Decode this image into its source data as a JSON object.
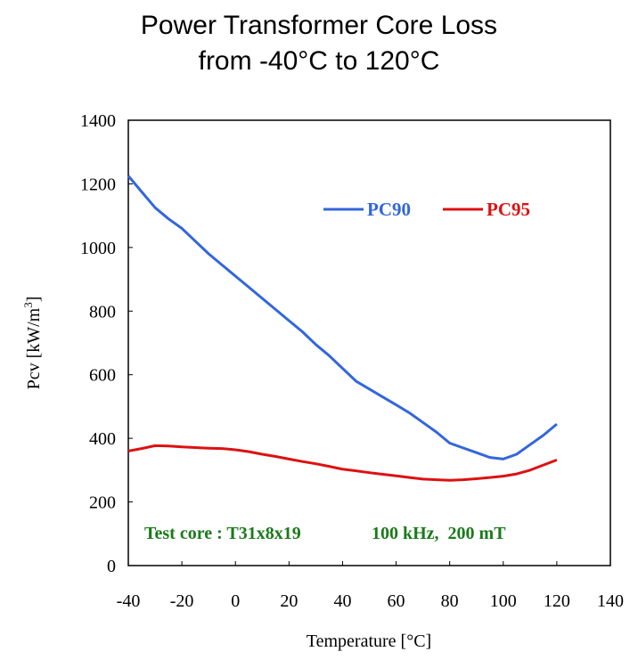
{
  "chart_data": {
    "type": "line",
    "title_line1": "Power Transformer Core Loss",
    "title_line2": "from -40°C to 120°C",
    "xlabel": "Temperature [°C]",
    "ylabel": "Pcv [kW/m",
    "ylabel_sup": "3",
    "ylabel_end": "]",
    "xlim": [
      -40,
      140
    ],
    "ylim": [
      0,
      1400
    ],
    "xticks": [
      -40,
      -20,
      0,
      20,
      40,
      60,
      80,
      100,
      120,
      140
    ],
    "yticks": [
      0,
      200,
      400,
      600,
      800,
      1000,
      1200,
      1400
    ],
    "legend_position": "top-right",
    "series": [
      {
        "name": "PC90",
        "color": "#3366dd",
        "x": [
          -40,
          -35,
          -30,
          -25,
          -20,
          -15,
          -10,
          -5,
          0,
          5,
          10,
          15,
          20,
          25,
          30,
          35,
          40,
          45,
          50,
          55,
          60,
          65,
          70,
          75,
          80,
          85,
          90,
          95,
          100,
          105,
          110,
          115,
          120
        ],
        "y": [
          1225,
          1175,
          1125,
          1090,
          1060,
          1020,
          980,
          945,
          910,
          875,
          840,
          805,
          770,
          735,
          695,
          660,
          620,
          580,
          555,
          530,
          505,
          480,
          450,
          420,
          385,
          370,
          355,
          340,
          335,
          350,
          380,
          410,
          445
        ]
      },
      {
        "name": "PC95",
        "color": "#dd1111",
        "x": [
          -40,
          -35,
          -30,
          -25,
          -20,
          -15,
          -10,
          -5,
          0,
          5,
          10,
          15,
          20,
          25,
          30,
          35,
          40,
          45,
          50,
          55,
          60,
          65,
          70,
          75,
          80,
          85,
          90,
          95,
          100,
          105,
          110,
          115,
          120
        ],
        "y": [
          360,
          368,
          377,
          376,
          373,
          371,
          369,
          368,
          364,
          358,
          350,
          343,
          335,
          327,
          320,
          312,
          303,
          298,
          292,
          287,
          282,
          277,
          272,
          270,
          268,
          270,
          273,
          277,
          281,
          288,
          300,
          316,
          332
        ]
      }
    ],
    "annotation_core": "Test core : T31x8x19",
    "annotation_cond": "100 kHz,  200 mT"
  }
}
